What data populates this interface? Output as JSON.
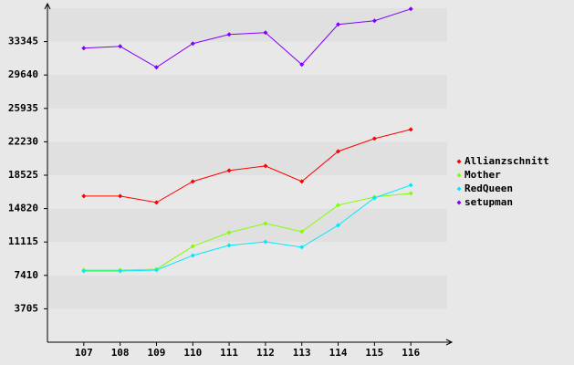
{
  "chart_data": {
    "type": "line",
    "categories": [
      "107",
      "108",
      "109",
      "110",
      "111",
      "112",
      "113",
      "114",
      "115",
      "116"
    ],
    "series": [
      {
        "name": "Allianzschnitt",
        "color": "#ff0000",
        "values": [
          16210,
          16210,
          15500,
          17830,
          19040,
          19550,
          17830,
          21170,
          22590,
          23600
        ]
      },
      {
        "name": "Mother",
        "color": "#80ff00",
        "values": [
          8000,
          8000,
          8100,
          10640,
          12160,
          13170,
          12260,
          15200,
          16110,
          16510
        ]
      },
      {
        "name": "RedQueen",
        "color": "#00e8ff",
        "values": [
          7900,
          7900,
          8000,
          9620,
          10740,
          11140,
          10540,
          12970,
          16010,
          17420
        ]
      },
      {
        "name": "setupman",
        "color": "#8000ff",
        "values": [
          32620,
          32820,
          30490,
          33130,
          34140,
          34340,
          30800,
          35250,
          35660,
          36970
        ]
      }
    ],
    "ylim": [
      0,
      37050
    ],
    "yticks": [
      3705,
      7410,
      11115,
      14820,
      18525,
      22230,
      25935,
      29640,
      33345
    ],
    "grid": true,
    "legend": "right"
  }
}
